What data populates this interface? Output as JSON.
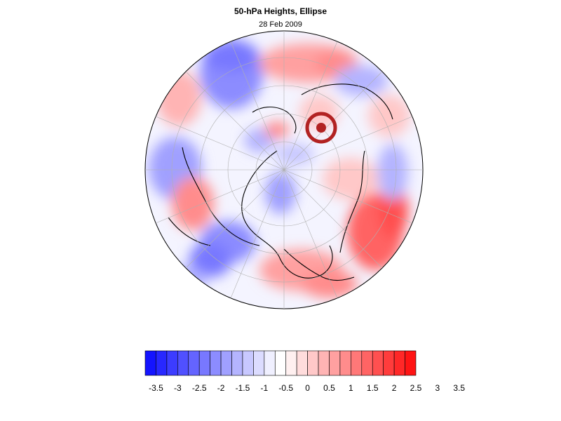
{
  "title": "50-hPa Heights, Ellipse",
  "date": "28 Feb 2009",
  "colorbar": {
    "palette": [
      "#1414ff",
      "#2828ff",
      "#3c3cff",
      "#5050ff",
      "#6464ff",
      "#7878ff",
      "#8c8cff",
      "#a0a0ff",
      "#b4b4ff",
      "#c8c8ff",
      "#dcdcff",
      "#f0f0ff",
      "#ffffff",
      "#fff0f0",
      "#ffdcdc",
      "#ffc8c8",
      "#ffb4b4",
      "#ffa0a0",
      "#ff8c8c",
      "#ff7878",
      "#ff6464",
      "#ff5050",
      "#ff3c3c",
      "#ff2828",
      "#ff1414"
    ],
    "labels": [
      "-3.5",
      "-3",
      "-2.5",
      "-2",
      "-1.5",
      "-1",
      "-0.5",
      "0",
      "0.5",
      "1",
      "1.5",
      "2",
      "2.5",
      "3",
      "3.5"
    ],
    "levels": [
      -3.5,
      -3,
      -2.5,
      -2,
      -1.5,
      -1,
      -0.5,
      0,
      0.5,
      1,
      1.5,
      2,
      2.5,
      3,
      3.5
    ]
  },
  "vortex_marker": {
    "color": "#b22222",
    "shape": "circled-dot"
  }
}
